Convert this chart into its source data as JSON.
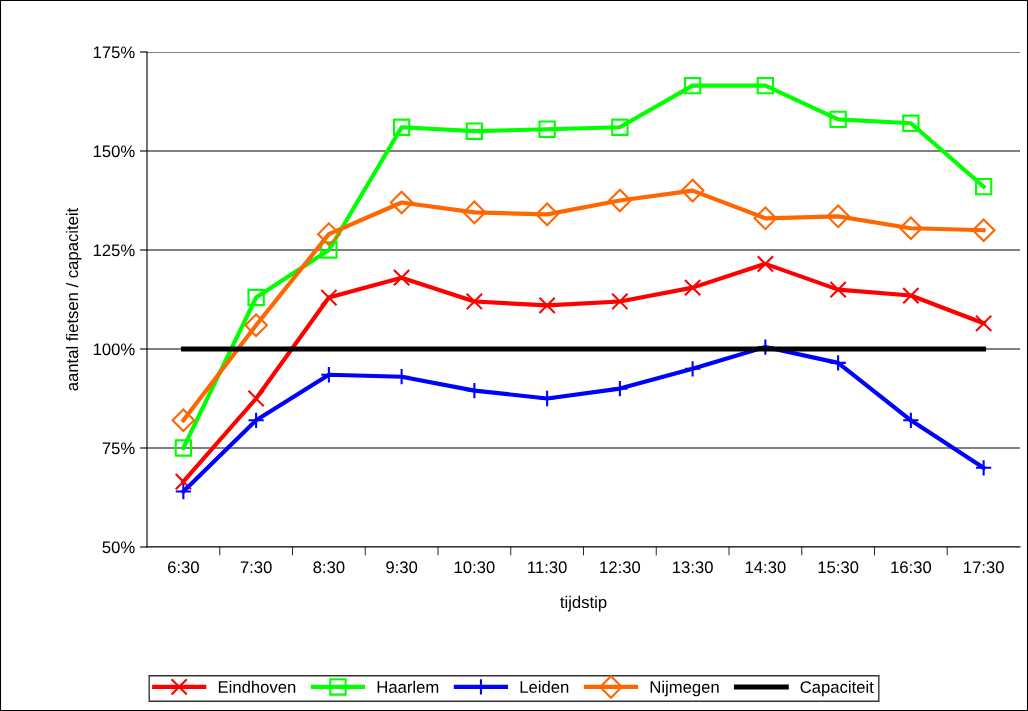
{
  "chart_data": {
    "type": "line",
    "xlabel": "tijdstip",
    "ylabel": "aantal fietsen / capaciteit",
    "categories": [
      "6:30",
      "7:30",
      "8:30",
      "9:30",
      "10:30",
      "11:30",
      "12:30",
      "13:30",
      "14:30",
      "15:30",
      "16:30",
      "17:30"
    ],
    "series": [
      {
        "name": "Eindhoven",
        "color": "#ff0000",
        "marker": "cross",
        "values": [
          66.5,
          87.5,
          113,
          118,
          112,
          111,
          112,
          115.5,
          121.5,
          115,
          113.5,
          106.5
        ]
      },
      {
        "name": "Haarlem",
        "color": "#00ff00",
        "marker": "square",
        "values": [
          75,
          113,
          125,
          156,
          155,
          155.5,
          156,
          166.5,
          166.5,
          158,
          157,
          141
        ]
      },
      {
        "name": "Leiden",
        "color": "#0000ff",
        "marker": "plus",
        "values": [
          64,
          82,
          93.5,
          93,
          89.5,
          87.5,
          90,
          95,
          100.5,
          96.5,
          82,
          70
        ]
      },
      {
        "name": "Nijmegen",
        "color": "#ff6600",
        "marker": "diamond",
        "values": [
          82,
          106,
          129,
          137,
          134.5,
          134,
          137.5,
          140,
          133,
          133.5,
          130.5,
          130
        ]
      },
      {
        "name": "Capaciteit",
        "color": "#000000",
        "marker": "none",
        "values": [
          100,
          100,
          100,
          100,
          100,
          100,
          100,
          100,
          100,
          100,
          100,
          100
        ]
      }
    ],
    "ylim": [
      50,
      175
    ],
    "yticks": [
      {
        "value": 50,
        "label": "50%"
      },
      {
        "value": 75,
        "label": "75%"
      },
      {
        "value": 100,
        "label": "100%"
      },
      {
        "value": 125,
        "label": "125%"
      },
      {
        "value": 150,
        "label": "150%"
      },
      {
        "value": 175,
        "label": "175%"
      }
    ],
    "grid": "y",
    "legend": "bottom",
    "line_style": "solid"
  }
}
